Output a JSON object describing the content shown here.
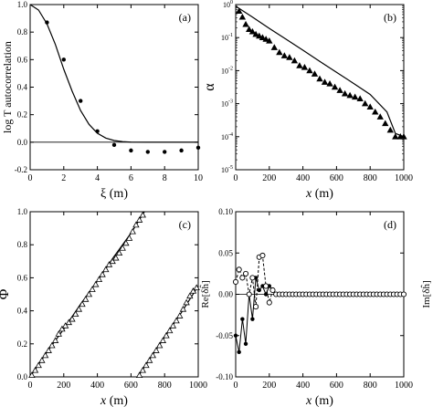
{
  "chart_data": [
    {
      "id": "a",
      "type": "line",
      "panel_label": "(a)",
      "xlabel": "ξ (m)",
      "ylabel": "log T autocorrelation",
      "xlim": [
        0,
        10
      ],
      "ylim": [
        -0.2,
        1.0
      ],
      "xticks": [
        "0",
        "2",
        "4",
        "6",
        "8",
        "10"
      ],
      "yticks": [
        "-0.2",
        "0.0",
        "0.2",
        "0.4",
        "0.6",
        "0.8",
        "1.0"
      ],
      "zero_line": true,
      "series": [
        {
          "marker": "line",
          "x": [
            0,
            0.5,
            1,
            1.5,
            2,
            2.5,
            3,
            3.5,
            4,
            4.5,
            5,
            5.5,
            6,
            7,
            8,
            9,
            10
          ],
          "y": [
            1.0,
            0.96,
            0.86,
            0.71,
            0.53,
            0.37,
            0.23,
            0.13,
            0.065,
            0.03,
            0.012,
            0.004,
            0.001,
            0,
            0,
            0,
            0
          ]
        },
        {
          "marker": "dot",
          "x": [
            1,
            2,
            3,
            4,
            5,
            6,
            7,
            8,
            9,
            10
          ],
          "y": [
            0.87,
            0.6,
            0.3,
            0.08,
            -0.02,
            -0.06,
            -0.07,
            -0.07,
            -0.06,
            -0.04
          ]
        }
      ]
    },
    {
      "id": "b",
      "type": "line",
      "panel_label": "(b)",
      "xlabel": "x (m)",
      "ylabel": "α",
      "log_y": true,
      "xlim": [
        0,
        1000
      ],
      "ylim_exp": [
        -5,
        0
      ],
      "xticks": [
        "0",
        "200",
        "400",
        "600",
        "800",
        "1000"
      ],
      "yticks": [
        "10^-5",
        "10^-4",
        "10^-3",
        "10^-2",
        "10^-1",
        "10^0"
      ],
      "series": [
        {
          "marker": "line",
          "x": [
            0,
            100,
            200,
            300,
            400,
            500,
            600,
            700,
            800,
            900,
            950,
            1000
          ],
          "log10y": [
            -0.05,
            -0.38,
            -0.72,
            -1.05,
            -1.38,
            -1.72,
            -2.05,
            -2.38,
            -2.72,
            -3.25,
            -3.9,
            -4.0
          ]
        },
        {
          "marker": "triangle-filled",
          "x": [
            20,
            40,
            60,
            80,
            100,
            120,
            140,
            160,
            180,
            200,
            230,
            260,
            290,
            320,
            350,
            380,
            410,
            440,
            470,
            500,
            530,
            560,
            590,
            620,
            650,
            680,
            710,
            740,
            770,
            800,
            830,
            860,
            890,
            920,
            950,
            980,
            1000
          ],
          "log10y": [
            -0.2,
            -0.38,
            -0.6,
            -0.75,
            -0.82,
            -0.9,
            -0.95,
            -1.0,
            -1.05,
            -1.1,
            -1.3,
            -1.45,
            -1.55,
            -1.6,
            -1.7,
            -1.85,
            -1.9,
            -2.0,
            -2.1,
            -2.25,
            -2.35,
            -2.4,
            -2.5,
            -2.6,
            -2.7,
            -2.75,
            -2.8,
            -2.85,
            -3.0,
            -3.1,
            -3.25,
            -3.4,
            -3.6,
            -3.8,
            -4.0,
            -4.0,
            -4.0
          ]
        }
      ]
    },
    {
      "id": "c",
      "type": "line",
      "panel_label": "(c)",
      "xlabel": "x (m)",
      "ylabel": "Φ",
      "xlim": [
        0,
        1000
      ],
      "ylim": [
        0,
        1.0
      ],
      "xticks": [
        "0",
        "200",
        "400",
        "600",
        "800",
        "1000"
      ],
      "yticks": [
        "0.0",
        "0.2",
        "0.4",
        "0.6",
        "0.8",
        "1.0"
      ],
      "series": [
        {
          "marker": "line",
          "x": [
            0,
            100,
            200,
            300,
            400,
            500,
            600,
            680
          ],
          "y": [
            0.0,
            0.15,
            0.29,
            0.44,
            0.58,
            0.73,
            0.87,
            1.0
          ]
        },
        {
          "marker": "line",
          "x": [
            640,
            700,
            800,
            900,
            1000
          ],
          "y": [
            0.0,
            0.09,
            0.24,
            0.39,
            0.55
          ]
        },
        {
          "marker": "triangle-open",
          "x": [
            10,
            30,
            50,
            70,
            90,
            110,
            130,
            150,
            170,
            190,
            210,
            230,
            250,
            270,
            290,
            310,
            330,
            350,
            370,
            390,
            410,
            430,
            450,
            470,
            490,
            510,
            530,
            550,
            570,
            590,
            610,
            630,
            650,
            670
          ],
          "y": [
            0.01,
            0.04,
            0.07,
            0.1,
            0.13,
            0.16,
            0.19,
            0.22,
            0.26,
            0.29,
            0.31,
            0.33,
            0.35,
            0.38,
            0.41,
            0.44,
            0.47,
            0.5,
            0.53,
            0.56,
            0.59,
            0.62,
            0.65,
            0.68,
            0.7,
            0.72,
            0.75,
            0.78,
            0.81,
            0.84,
            0.88,
            0.92,
            0.95,
            0.98
          ]
        },
        {
          "marker": "triangle-open",
          "x": [
            650,
            670,
            690,
            710,
            730,
            750,
            770,
            790,
            810,
            830,
            850,
            870,
            890,
            910,
            930,
            950,
            970,
            990
          ],
          "y": [
            0.01,
            0.04,
            0.07,
            0.1,
            0.13,
            0.16,
            0.19,
            0.22,
            0.25,
            0.28,
            0.31,
            0.34,
            0.37,
            0.41,
            0.45,
            0.49,
            0.52,
            0.54
          ]
        }
      ]
    },
    {
      "id": "d",
      "type": "line",
      "panel_label": "(d)",
      "xlabel": "x (m)",
      "ylabel_left": "Re[δĥ]",
      "ylabel_right": "Im[δĥ]",
      "xlim": [
        0,
        1000
      ],
      "ylim": [
        -0.1,
        0.1
      ],
      "xticks": [
        "0",
        "200",
        "400",
        "600",
        "800",
        "1000"
      ],
      "yticks": [
        "-0.10",
        "-0.05",
        "0.00",
        "0.05",
        "0.10"
      ],
      "zero_line": true,
      "series": [
        {
          "marker": "dot",
          "line": "solid",
          "x": [
            0,
            20,
            40,
            60,
            80,
            100,
            120,
            140,
            160,
            180,
            200,
            220,
            240,
            260,
            280,
            300,
            320,
            340,
            360,
            380,
            400,
            420,
            440,
            460,
            480,
            500,
            520,
            540,
            560,
            580,
            600,
            620,
            640,
            660,
            680,
            700,
            720,
            740,
            760,
            780,
            800,
            820,
            840,
            860,
            880,
            900,
            920,
            940,
            960,
            980,
            1000
          ],
          "y": [
            -0.05,
            -0.07,
            -0.03,
            -0.06,
            0.0,
            -0.03,
            0.02,
            0.005,
            0.01,
            0.0,
            0.01,
            0.005,
            0.0,
            0.0,
            0.0,
            0.0,
            0.0,
            0.0,
            0.0,
            0.0,
            0.0,
            0.0,
            0.0,
            0.0,
            0.0,
            0.0,
            0.0,
            0.0,
            0.0,
            0.0,
            0.0,
            0.0,
            0.0,
            0.0,
            0.0,
            0.0,
            0.0,
            0.0,
            0.0,
            0.0,
            0.0,
            0.0,
            0.0,
            0.0,
            0.0,
            0.0,
            0.0,
            0.0,
            0.0,
            0.0,
            0.0
          ]
        },
        {
          "marker": "circle-open",
          "line": "dashed",
          "x": [
            0,
            20,
            40,
            60,
            80,
            100,
            120,
            140,
            160,
            180,
            200,
            220,
            240,
            260,
            280,
            300,
            320,
            340,
            360,
            380,
            400,
            420,
            440,
            460,
            480,
            500,
            520,
            540,
            560,
            580,
            600,
            620,
            640,
            660,
            680,
            700,
            720,
            740,
            760,
            780,
            800,
            820,
            840,
            860,
            880,
            900,
            920,
            940,
            960,
            980,
            1000
          ],
          "y": [
            0.015,
            0.03,
            0.02,
            0.025,
            0.0,
            0.02,
            -0.015,
            0.045,
            0.047,
            0.01,
            -0.01,
            0.005,
            0.0,
            0.0,
            0.0,
            0.0,
            0.0,
            0.0,
            0.0,
            0.0,
            0.0,
            0.0,
            0.0,
            0.0,
            0.0,
            0.0,
            0.0,
            0.0,
            0.0,
            0.0,
            0.0,
            0.0,
            0.0,
            0.0,
            0.0,
            0.0,
            0.0,
            0.0,
            0.0,
            0.0,
            0.0,
            0.0,
            0.0,
            0.0,
            0.0,
            0.0,
            0.0,
            0.0,
            0.0,
            0.0,
            0.0
          ]
        }
      ]
    }
  ]
}
